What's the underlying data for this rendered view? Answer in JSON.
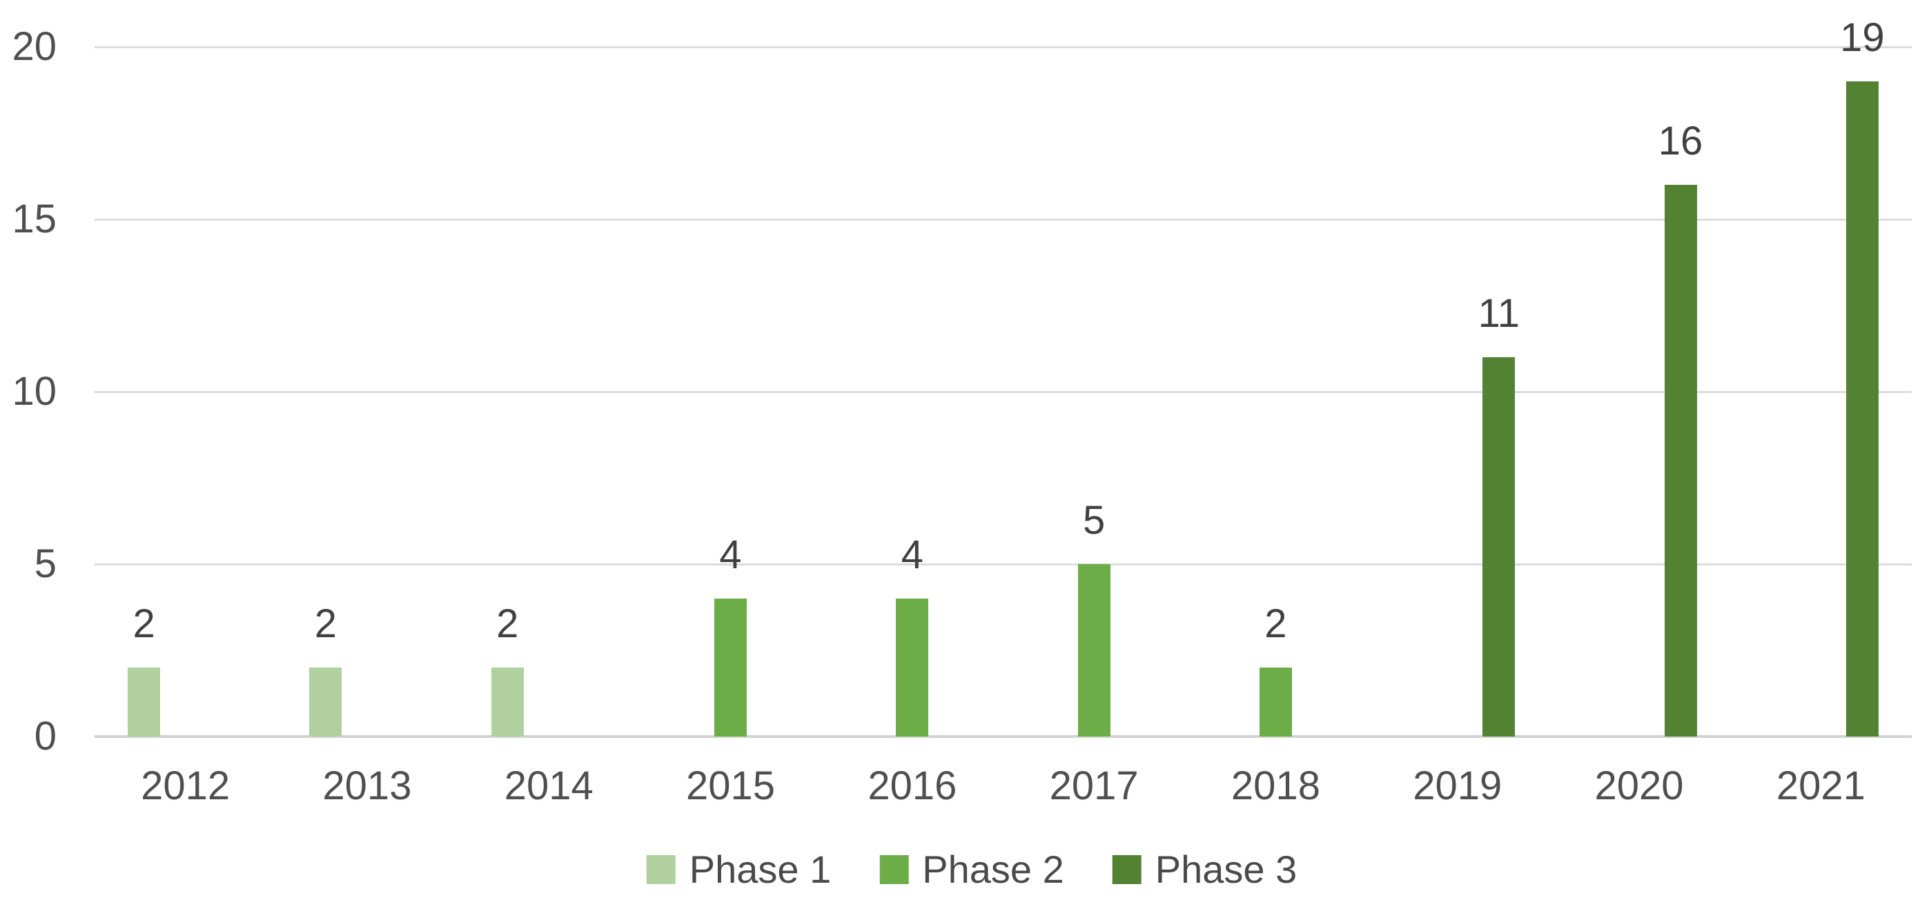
{
  "chart_data": {
    "type": "bar",
    "title": "",
    "xlabel": "",
    "ylabel": "",
    "categories": [
      "2012",
      "2013",
      "2014",
      "2015",
      "2016",
      "2017",
      "2018",
      "2019",
      "2020",
      "2021"
    ],
    "series": [
      {
        "name": "Phase 1",
        "color": "#b1d0a0",
        "values": [
          2,
          2,
          2,
          null,
          null,
          null,
          null,
          null,
          null,
          null
        ]
      },
      {
        "name": "Phase 2",
        "color": "#6cad47",
        "values": [
          null,
          null,
          null,
          4,
          4,
          5,
          2,
          null,
          null,
          null
        ]
      },
      {
        "name": "Phase 3",
        "color": "#538233",
        "values": [
          null,
          null,
          null,
          null,
          null,
          null,
          null,
          11,
          16,
          19
        ]
      }
    ],
    "data_labels": [
      2,
      2,
      2,
      4,
      4,
      5,
      2,
      11,
      16,
      19
    ],
    "ylim": [
      0,
      20
    ],
    "yticks": [
      0,
      5,
      10,
      15,
      20
    ],
    "grid": "horizontal-only",
    "gridline_color": "#dcdcdc",
    "axis_line_color": "#d2d2d2",
    "tick_label_color": "#4f4f4f",
    "data_label_color": "#404040",
    "legend_position": "bottom-center",
    "legend_labels": [
      "Phase 1",
      "Phase 2",
      "Phase 3"
    ]
  }
}
